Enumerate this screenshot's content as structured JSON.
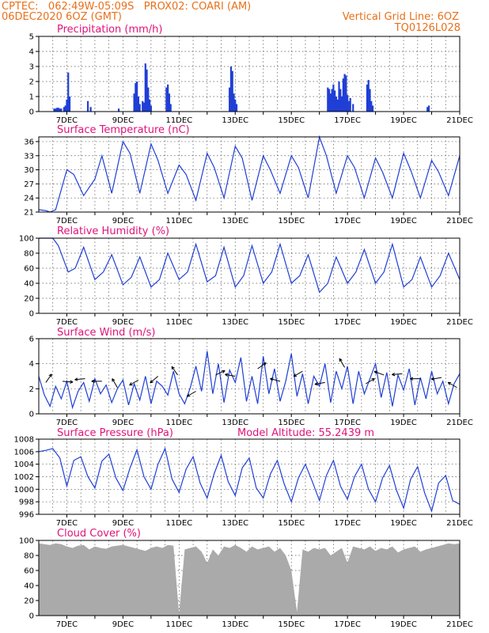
{
  "header": {
    "line1": "CPTEC:   062:49W-05:09S   PROX02: COARI (AM)",
    "line2": "06DEC2020 6OZ (GMT)",
    "grid_note": "Vertical Grid Line: 6OZ",
    "model_id": "TQ0126L028"
  },
  "colors": {
    "header": "#e8701a",
    "title": "#e0137a",
    "series": "#1f3fd6",
    "cloud": "#aaaaaa",
    "arrow": "#000000"
  },
  "chart_data": [
    {
      "type": "bar",
      "title": "Precipitation (mm/h)",
      "ylim": [
        0,
        5
      ],
      "yticks": [
        "0",
        "1",
        "2",
        "3",
        "4",
        "5"
      ],
      "xticks": [
        "7DEC",
        "9DEC",
        "11DEC",
        "13DEC",
        "15DEC",
        "17DEC",
        "19DEC",
        "21DEC"
      ],
      "xrange": [
        6.0,
        21.0
      ],
      "grid": true,
      "x": [
        6.55,
        6.6,
        6.65,
        6.7,
        6.75,
        6.8,
        6.9,
        6.95,
        7.0,
        7.05,
        7.1,
        7.75,
        7.85,
        8.85,
        9.4,
        9.45,
        9.5,
        9.55,
        9.6,
        9.7,
        9.75,
        9.8,
        9.85,
        9.9,
        9.95,
        10.0,
        10.55,
        10.6,
        10.65,
        10.7,
        12.8,
        12.85,
        12.9,
        12.95,
        13.0,
        13.05,
        16.3,
        16.35,
        16.4,
        16.45,
        16.5,
        16.55,
        16.6,
        16.65,
        16.7,
        16.75,
        16.8,
        16.85,
        16.9,
        16.95,
        17.0,
        17.05,
        17.1,
        17.2,
        17.7,
        17.75,
        17.8,
        17.85,
        17.9,
        19.85,
        19.9
      ],
      "values": [
        0.2,
        0.2,
        0.25,
        0.25,
        0.2,
        0.2,
        0.3,
        0.4,
        0.8,
        2.6,
        1.0,
        0.7,
        0.3,
        0.2,
        1.2,
        1.9,
        2.0,
        1.0,
        0.5,
        0.7,
        0.6,
        3.2,
        2.8,
        1.6,
        0.8,
        0.4,
        1.6,
        1.8,
        1.2,
        0.5,
        1.6,
        3.0,
        2.7,
        1.2,
        0.8,
        0.5,
        1.6,
        1.5,
        1.2,
        1.5,
        1.8,
        1.4,
        1.0,
        0.8,
        2.0,
        1.5,
        1.0,
        2.2,
        2.5,
        2.4,
        1.1,
        0.7,
        0.9,
        0.5,
        1.8,
        2.1,
        1.5,
        0.7,
        0.4,
        0.3,
        0.4
      ]
    },
    {
      "type": "line",
      "title": "Surface Temperature (nC)",
      "ylim": [
        21,
        37
      ],
      "yticks": [
        "21",
        "24",
        "27",
        "30",
        "33",
        "36"
      ],
      "xticks": [
        "7DEC",
        "9DEC",
        "11DEC",
        "13DEC",
        "15DEC",
        "17DEC",
        "19DEC",
        "21DEC"
      ],
      "xrange": [
        6.0,
        21.0
      ],
      "grid": true,
      "x": [
        6.0,
        6.25,
        6.4,
        6.6,
        7.0,
        7.25,
        7.6,
        8.0,
        8.25,
        8.6,
        9.0,
        9.25,
        9.6,
        10.0,
        10.25,
        10.6,
        11.0,
        11.25,
        11.6,
        12.0,
        12.25,
        12.6,
        13.0,
        13.25,
        13.6,
        14.0,
        14.25,
        14.6,
        15.0,
        15.25,
        15.6,
        16.0,
        16.25,
        16.6,
        17.0,
        17.25,
        17.6,
        18.0,
        18.25,
        18.6,
        19.0,
        19.25,
        19.6,
        20.0,
        20.25,
        20.6,
        21.0
      ],
      "values": [
        21.5,
        21.3,
        21.0,
        21.5,
        30.0,
        29.0,
        24.5,
        28.0,
        33.0,
        25.0,
        36.0,
        33.5,
        25.0,
        35.5,
        32.0,
        25.0,
        31.0,
        29.0,
        23.5,
        33.5,
        30.5,
        24.0,
        35.0,
        32.5,
        23.5,
        33.0,
        30.0,
        25.0,
        33.0,
        30.5,
        24.0,
        37.0,
        33.0,
        25.0,
        33.0,
        30.5,
        24.0,
        32.5,
        29.5,
        24.0,
        33.5,
        30.0,
        24.0,
        32.0,
        29.5,
        24.5,
        33.0
      ]
    },
    {
      "type": "line",
      "title": "Relative Humidity (%)",
      "ylim": [
        0,
        100
      ],
      "yticks": [
        "0",
        "20",
        "40",
        "60",
        "80",
        "100"
      ],
      "xticks": [
        "7DEC",
        "9DEC",
        "11DEC",
        "13DEC",
        "15DEC",
        "17DEC",
        "19DEC",
        "21DEC"
      ],
      "xrange": [
        6.0,
        21.0
      ],
      "grid": true,
      "x": [
        6.0,
        6.3,
        6.5,
        6.7,
        7.05,
        7.3,
        7.6,
        8.0,
        8.3,
        8.6,
        9.0,
        9.3,
        9.6,
        10.0,
        10.3,
        10.6,
        11.0,
        11.3,
        11.6,
        12.0,
        12.3,
        12.6,
        13.0,
        13.3,
        13.6,
        14.0,
        14.3,
        14.6,
        15.0,
        15.3,
        15.6,
        16.0,
        16.3,
        16.6,
        17.0,
        17.3,
        17.6,
        18.0,
        18.3,
        18.6,
        19.0,
        19.3,
        19.6,
        20.0,
        20.3,
        20.6,
        21.0
      ],
      "values": [
        100,
        100,
        100,
        90,
        55,
        60,
        88,
        45,
        55,
        78,
        38,
        48,
        75,
        35,
        45,
        80,
        45,
        55,
        92,
        42,
        50,
        88,
        35,
        50,
        90,
        40,
        55,
        92,
        40,
        50,
        78,
        28,
        40,
        75,
        40,
        55,
        85,
        40,
        55,
        92,
        35,
        45,
        75,
        35,
        50,
        80,
        45
      ]
    },
    {
      "type": "line",
      "title": "Surface Wind (m/s)",
      "ylim": [
        0,
        6
      ],
      "yticks": [
        "0",
        "2",
        "4",
        "6"
      ],
      "xticks": [
        "7DEC",
        "9DEC",
        "11DEC",
        "13DEC",
        "15DEC",
        "17DEC",
        "19DEC",
        "21DEC"
      ],
      "xrange": [
        6.0,
        21.0
      ],
      "grid": true,
      "x": [
        6.0,
        6.2,
        6.4,
        6.6,
        6.8,
        7.0,
        7.2,
        7.4,
        7.6,
        7.8,
        8.0,
        8.2,
        8.4,
        8.6,
        8.8,
        9.0,
        9.2,
        9.4,
        9.6,
        9.8,
        10.0,
        10.2,
        10.4,
        10.6,
        10.8,
        11.0,
        11.2,
        11.4,
        11.6,
        11.8,
        12.0,
        12.2,
        12.4,
        12.6,
        12.8,
        13.0,
        13.2,
        13.4,
        13.6,
        13.8,
        14.0,
        14.2,
        14.4,
        14.6,
        14.8,
        15.0,
        15.2,
        15.4,
        15.6,
        15.8,
        16.0,
        16.2,
        16.4,
        16.6,
        16.8,
        17.0,
        17.2,
        17.4,
        17.6,
        17.8,
        18.0,
        18.2,
        18.4,
        18.6,
        18.8,
        19.0,
        19.2,
        19.4,
        19.6,
        19.8,
        20.0,
        20.2,
        20.4,
        20.6,
        20.8,
        21.0
      ],
      "values": [
        3.0,
        1.5,
        0.6,
        2.2,
        1.2,
        2.6,
        0.5,
        1.8,
        2.5,
        1.0,
        2.8,
        1.6,
        2.3,
        0.9,
        2.0,
        2.7,
        0.7,
        2.4,
        1.1,
        3.0,
        0.8,
        2.6,
        2.2,
        1.5,
        3.4,
        1.6,
        0.8,
        2.1,
        3.8,
        1.8,
        5.0,
        1.6,
        4.0,
        0.9,
        3.5,
        2.5,
        4.5,
        1.0,
        3.0,
        0.8,
        4.6,
        1.6,
        3.6,
        1.0,
        2.6,
        4.8,
        1.4,
        3.2,
        0.8,
        3.0,
        2.2,
        4.0,
        0.9,
        3.4,
        2.0,
        3.8,
        0.8,
        3.4,
        1.6,
        2.8,
        4.0,
        1.3,
        3.3,
        0.6,
        3.1,
        1.9,
        3.6,
        0.7,
        2.9,
        1.2,
        3.4,
        1.6,
        2.6,
        0.8,
        2.4,
        3.2
      ]
    },
    {
      "type": "line",
      "title": "Surface Pressure (hPa)",
      "annotation": "Model Altitude: 55.2439 m",
      "ylim": [
        996,
        1008
      ],
      "yticks": [
        "996",
        "998",
        "1000",
        "1002",
        "1004",
        "1006",
        "1008"
      ],
      "xticks": [
        "7DEC",
        "9DEC",
        "11DEC",
        "13DEC",
        "15DEC",
        "17DEC",
        "19DEC",
        "21DEC"
      ],
      "xrange": [
        6.0,
        21.0
      ],
      "grid": true,
      "x": [
        6.0,
        6.25,
        6.5,
        6.75,
        7.0,
        7.25,
        7.5,
        7.75,
        8.0,
        8.25,
        8.5,
        8.75,
        9.0,
        9.25,
        9.5,
        9.75,
        10.0,
        10.25,
        10.5,
        10.75,
        11.0,
        11.25,
        11.5,
        11.75,
        12.0,
        12.25,
        12.5,
        12.75,
        13.0,
        13.25,
        13.5,
        13.75,
        14.0,
        14.25,
        14.5,
        14.75,
        15.0,
        15.25,
        15.5,
        15.75,
        16.0,
        16.25,
        16.5,
        16.75,
        17.0,
        17.25,
        17.5,
        17.75,
        18.0,
        18.25,
        18.5,
        18.75,
        19.0,
        19.25,
        19.5,
        19.75,
        20.0,
        20.25,
        20.5,
        20.75,
        21.0
      ],
      "values": [
        1006.0,
        1006.2,
        1006.5,
        1005.0,
        1000.5,
        1004.6,
        1005.2,
        1002.0,
        1000.2,
        1004.5,
        1005.6,
        1001.8,
        999.8,
        1003.4,
        1006.3,
        1002.0,
        1000.0,
        1004.0,
        1006.5,
        1001.6,
        999.5,
        1003.2,
        1005.2,
        1001.0,
        998.6,
        1002.5,
        1005.4,
        1001.2,
        999.0,
        1003.4,
        1005.0,
        1000.2,
        998.6,
        1002.4,
        1004.6,
        1000.8,
        998.0,
        1001.8,
        1004.0,
        1001.2,
        998.2,
        1002.2,
        1004.6,
        1000.5,
        998.4,
        1002.0,
        1004.0,
        1000.0,
        998.0,
        1001.8,
        1003.8,
        999.8,
        997.0,
        1001.6,
        1003.6,
        999.4,
        996.5,
        1001.0,
        1002.2,
        998.2,
        997.6
      ]
    },
    {
      "type": "area",
      "title": "Cloud Cover (%)",
      "ylim": [
        0,
        100
      ],
      "yticks": [
        "0",
        "20",
        "40",
        "60",
        "80",
        "100"
      ],
      "xticks": [
        "7DEC",
        "9DEC",
        "11DEC",
        "13DEC",
        "15DEC",
        "17DEC",
        "19DEC",
        "21DEC"
      ],
      "xrange": [
        6.0,
        21.0
      ],
      "grid": true,
      "x": [
        6.0,
        6.2,
        6.4,
        6.6,
        6.8,
        7.0,
        7.2,
        7.4,
        7.6,
        7.8,
        8.0,
        8.2,
        8.4,
        8.6,
        8.8,
        9.0,
        9.2,
        9.4,
        9.6,
        9.8,
        10.0,
        10.2,
        10.4,
        10.6,
        10.8,
        11.0,
        11.2,
        11.4,
        11.6,
        11.8,
        12.0,
        12.2,
        12.4,
        12.6,
        12.8,
        13.0,
        13.2,
        13.4,
        13.6,
        13.8,
        14.0,
        14.2,
        14.4,
        14.6,
        14.8,
        15.0,
        15.2,
        15.4,
        15.6,
        15.8,
        16.0,
        16.2,
        16.4,
        16.6,
        16.8,
        17.0,
        17.2,
        17.4,
        17.6,
        17.8,
        18.0,
        18.2,
        18.4,
        18.6,
        18.8,
        19.0,
        19.2,
        19.4,
        19.6,
        19.8,
        20.0,
        20.2,
        20.4,
        20.6,
        20.8,
        21.0
      ],
      "values": [
        96,
        95,
        94,
        96,
        95,
        92,
        90,
        93,
        94,
        88,
        92,
        90,
        89,
        92,
        93,
        94,
        92,
        90,
        88,
        86,
        90,
        92,
        90,
        94,
        93,
        3,
        88,
        90,
        92,
        85,
        70,
        88,
        80,
        92,
        90,
        94,
        90,
        85,
        92,
        88,
        90,
        92,
        85,
        90,
        80,
        60,
        5,
        88,
        85,
        90,
        88,
        90,
        80,
        85,
        90,
        70,
        92,
        90,
        88,
        92,
        86,
        90,
        88,
        92,
        84,
        88,
        90,
        92,
        85,
        88,
        90,
        92,
        94,
        96,
        95,
        96
      ]
    }
  ],
  "wind_arrows": [
    {
      "day": 6.25,
      "speed": 2.5,
      "angle": -55
    },
    {
      "day": 6.85,
      "speed": 2.6,
      "angle": 5
    },
    {
      "day": 7.65,
      "speed": 2.8,
      "angle": 175
    },
    {
      "day": 8.25,
      "speed": 2.6,
      "angle": 180
    },
    {
      "day": 8.8,
      "speed": 2.1,
      "angle": -120
    },
    {
      "day": 9.55,
      "speed": 2.7,
      "angle": 150
    },
    {
      "day": 10.25,
      "speed": 3.0,
      "angle": 140
    },
    {
      "day": 10.95,
      "speed": 3.1,
      "angle": -125
    },
    {
      "day": 11.6,
      "speed": 1.8,
      "angle": 150
    },
    {
      "day": 12.3,
      "speed": 3.1,
      "angle": -25
    },
    {
      "day": 13.0,
      "speed": 3.0,
      "angle": 190
    },
    {
      "day": 13.8,
      "speed": 3.6,
      "angle": -35
    },
    {
      "day": 14.6,
      "speed": 2.6,
      "angle": 195
    },
    {
      "day": 15.4,
      "speed": 3.4,
      "angle": 150
    },
    {
      "day": 16.2,
      "speed": 2.5,
      "angle": 170
    },
    {
      "day": 16.9,
      "speed": 3.7,
      "angle": -120
    },
    {
      "day": 17.65,
      "speed": 2.4,
      "angle": -30
    },
    {
      "day": 18.3,
      "speed": 3.1,
      "angle": -160
    },
    {
      "day": 18.95,
      "speed": 3.2,
      "angle": 175
    },
    {
      "day": 19.6,
      "speed": 2.8,
      "angle": 180
    },
    {
      "day": 20.35,
      "speed": 2.9,
      "angle": 170
    },
    {
      "day": 20.9,
      "speed": 2.1,
      "angle": -150
    }
  ]
}
